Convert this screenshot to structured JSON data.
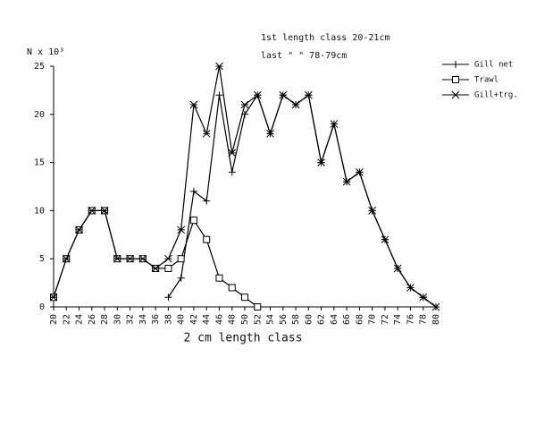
{
  "chart_data": {
    "type": "line",
    "ylabel": "N x 10³",
    "xlabel": "2 cm length class",
    "annotations": [
      "1st length class 20-21cm",
      "last     \"        \"     78-79cm"
    ],
    "x": [
      20,
      22,
      24,
      26,
      28,
      30,
      32,
      34,
      36,
      38,
      40,
      42,
      44,
      46,
      48,
      50,
      52,
      54,
      56,
      58,
      60,
      62,
      64,
      66,
      68,
      70,
      72,
      74,
      76,
      78,
      80
    ],
    "series": [
      {
        "name": "Gill net",
        "color": "#000000",
        "marker": "plus",
        "values": [
          null,
          null,
          null,
          null,
          null,
          null,
          null,
          null,
          null,
          1,
          3,
          12,
          11,
          22,
          14,
          20,
          22,
          18,
          22,
          21,
          22,
          15,
          19,
          13,
          14,
          10,
          7,
          4,
          2,
          1,
          0
        ]
      },
      {
        "name": "Trawl",
        "color": "#000000",
        "marker": "square",
        "values": [
          1,
          5,
          8,
          10,
          10,
          5,
          5,
          5,
          4,
          4,
          5,
          9,
          7,
          3,
          2,
          1,
          0,
          null,
          null,
          null,
          null,
          null,
          null,
          null,
          null,
          null,
          null,
          null,
          null,
          null,
          null
        ]
      },
      {
        "name": "Gill+trg.",
        "color": "#000000",
        "marker": "cross",
        "values": [
          1,
          5,
          8,
          10,
          10,
          5,
          5,
          5,
          4,
          5,
          8,
          21,
          18,
          25,
          16,
          21,
          22,
          18,
          22,
          21,
          22,
          15,
          19,
          13,
          14,
          10,
          7,
          4,
          2,
          1,
          0
        ]
      }
    ],
    "xlim": [
      20,
      80
    ],
    "xticks": [
      20,
      22,
      24,
      26,
      28,
      30,
      32,
      34,
      36,
      38,
      40,
      42,
      44,
      46,
      48,
      50,
      52,
      54,
      56,
      58,
      60,
      62,
      64,
      66,
      68,
      70,
      72,
      74,
      76,
      78,
      80
    ],
    "ylim": [
      0,
      25
    ],
    "yticks": [
      0,
      5,
      10,
      15,
      20,
      25
    ],
    "grid": false,
    "legend": "top-right"
  }
}
